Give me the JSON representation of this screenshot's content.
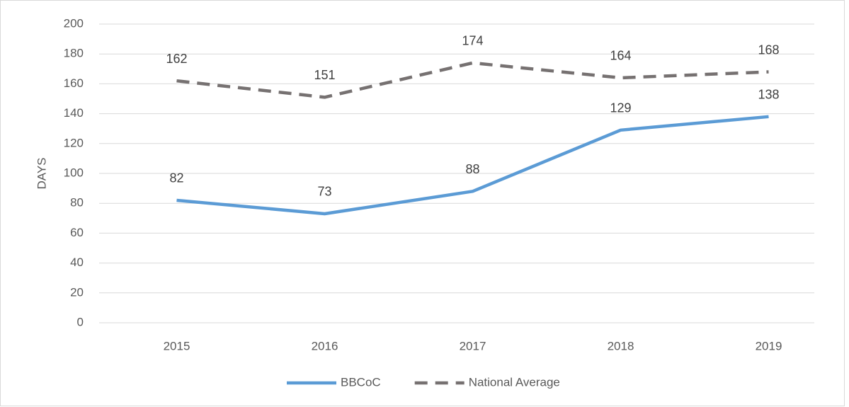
{
  "chart_data": {
    "type": "line",
    "y_label": "DAYS",
    "categories": [
      "2015",
      "2016",
      "2017",
      "2018",
      "2019"
    ],
    "series": [
      {
        "name": "BBCoC",
        "color": "#5b9bd5",
        "dash": false,
        "values": [
          82,
          73,
          88,
          129,
          138
        ]
      },
      {
        "name": "National Average",
        "color": "#767171",
        "dash": true,
        "values": [
          162,
          151,
          174,
          164,
          168
        ]
      }
    ],
    "ylim": [
      0,
      200
    ],
    "yticks": [
      0,
      20,
      40,
      60,
      80,
      100,
      120,
      140,
      160,
      180,
      200
    ],
    "grid": true,
    "legend": "bottom",
    "data_labels": true
  }
}
